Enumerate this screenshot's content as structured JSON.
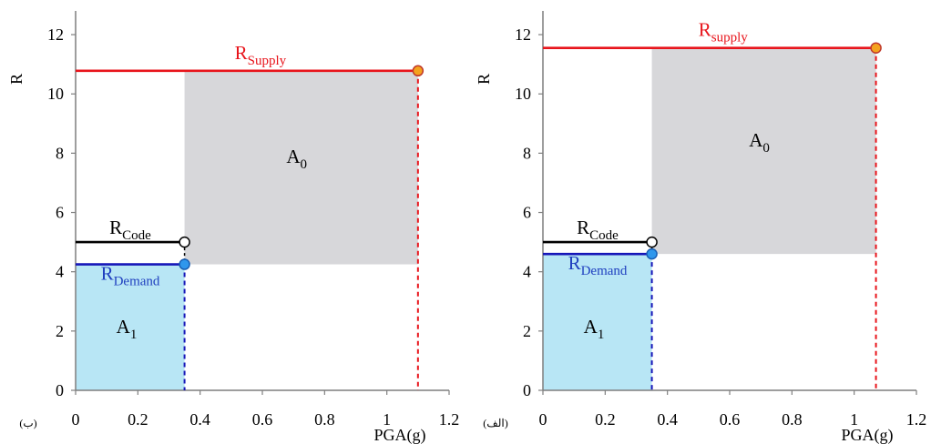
{
  "chart_data": [
    {
      "type": "area",
      "panel_label": "(ب)",
      "xlabel": "PGA(g)",
      "ylabel": "R",
      "xlim": [
        0,
        1.2
      ],
      "ylim": [
        0,
        12.8
      ],
      "x_ticks": [
        0,
        0.2,
        0.4,
        0.6,
        0.8,
        1,
        1.2
      ],
      "x_tick_labels": [
        "0",
        "0.2",
        "0.4",
        "0.6",
        "0.8",
        "1",
        "1.2"
      ],
      "y_ticks": [
        0,
        2,
        4,
        6,
        8,
        10,
        12
      ],
      "y_tick_labels": [
        "0",
        "2",
        "4",
        "6",
        "8",
        "10",
        "12"
      ],
      "pga_design": 0.35,
      "pga_max": 1.1,
      "r_supply": 10.78,
      "r_code": 5.0,
      "r_demand": 4.25,
      "labels": {
        "supply_main": "R",
        "supply_sub": "Supply",
        "code_main": "R",
        "code_sub": "Code",
        "demand_main": "R",
        "demand_sub": "Demand",
        "a0_main": "A",
        "a0_sub": "0",
        "a1_main": "A",
        "a1_sub": "1"
      },
      "regions": [
        {
          "name": "A0",
          "x": [
            0.35,
            1.1
          ],
          "y": [
            4.25,
            10.78
          ]
        },
        {
          "name": "A1",
          "x": [
            0,
            0.35
          ],
          "y": [
            0,
            4.25
          ]
        }
      ]
    },
    {
      "type": "area",
      "panel_label": "(الف)",
      "xlabel": "PGA(g)",
      "ylabel": "R",
      "xlim": [
        0,
        1.2
      ],
      "ylim": [
        0,
        12.8
      ],
      "x_ticks": [
        0,
        0.2,
        0.4,
        0.6,
        0.8,
        1,
        1.2
      ],
      "x_tick_labels": [
        "0",
        "0.2",
        "0.4",
        "0.6",
        "0.8",
        "1",
        "1.2"
      ],
      "y_ticks": [
        0,
        2,
        4,
        6,
        8,
        10,
        12
      ],
      "y_tick_labels": [
        "0",
        "2",
        "4",
        "6",
        "8",
        "10",
        "12"
      ],
      "pga_design": 0.35,
      "pga_max": 1.07,
      "r_supply": 11.55,
      "r_code": 5.0,
      "r_demand": 4.6,
      "labels": {
        "supply_main": "R",
        "supply_sub": "supply",
        "code_main": "R",
        "code_sub": "Code",
        "demand_main": "R",
        "demand_sub": "Demand",
        "a0_main": "A",
        "a0_sub": "0",
        "a1_main": "A",
        "a1_sub": "1"
      },
      "regions": [
        {
          "name": "A0",
          "x": [
            0.35,
            1.07
          ],
          "y": [
            4.6,
            11.55
          ]
        },
        {
          "name": "A1",
          "x": [
            0,
            0.35
          ],
          "y": [
            0,
            4.6
          ]
        }
      ]
    }
  ],
  "colors": {
    "supply": "#e8141b",
    "demand": "#1616b8",
    "code": "#000000",
    "a0_fill": "#d7d7da",
    "a1_fill": "#b8e6f5",
    "supply_marker": "#f4a21d",
    "demand_marker": "#2f97ec",
    "code_marker": "#ffffff",
    "demand_label": "#1f3fbf"
  }
}
